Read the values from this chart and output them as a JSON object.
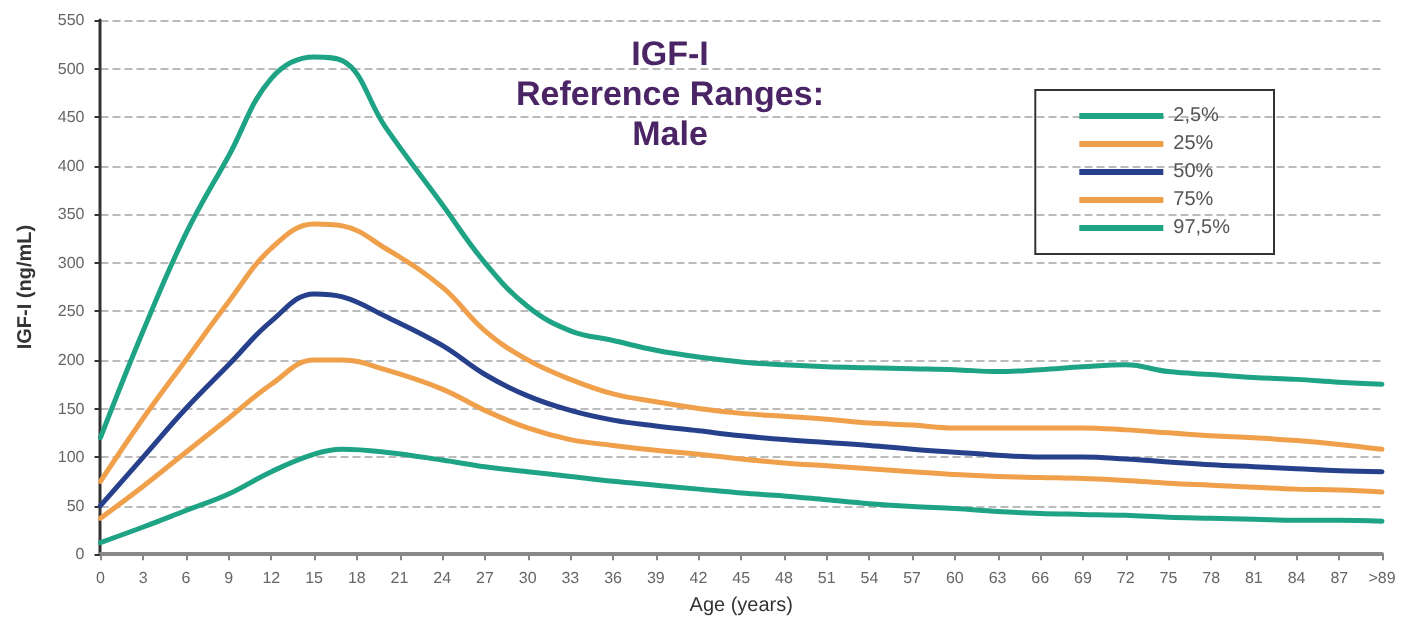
{
  "chart_data": {
    "type": "line",
    "title": "IGF-I\nReference Ranges:\nMale",
    "xlabel": "Age (years)",
    "ylabel": "IGF-I (ng/mL)",
    "x": [
      0,
      3,
      6,
      9,
      12,
      15,
      17,
      20,
      24,
      27,
      30,
      33,
      36,
      39,
      42,
      45,
      48,
      51,
      54,
      57,
      60,
      63,
      66,
      69,
      72,
      75,
      78,
      81,
      84,
      87,
      90
    ],
    "series": [
      {
        "name": "2,5%",
        "color": "#1fa385",
        "values": [
          12,
          28,
          45,
          62,
          85,
          103,
          108,
          105,
          97,
          90,
          85,
          80,
          75,
          71,
          67,
          63,
          60,
          56,
          52,
          49,
          47,
          44,
          42,
          41,
          40,
          38,
          37,
          36,
          35,
          35,
          34
        ]
      },
      {
        "name": "25%",
        "color": "#f0a04b",
        "values": [
          37,
          70,
          105,
          140,
          175,
          200,
          200,
          190,
          170,
          148,
          130,
          118,
          112,
          107,
          103,
          98,
          94,
          91,
          88,
          85,
          82,
          80,
          79,
          78,
          76,
          73,
          71,
          69,
          67,
          66,
          64
        ]
      },
      {
        "name": "50%",
        "color": "#27408b",
        "values": [
          50,
          100,
          150,
          195,
          240,
          268,
          265,
          245,
          215,
          185,
          163,
          148,
          138,
          132,
          127,
          122,
          118,
          115,
          112,
          108,
          105,
          102,
          100,
          100,
          98,
          95,
          92,
          90,
          88,
          86,
          85
        ]
      },
      {
        "name": "75%",
        "color": "#f0a04b",
        "values": [
          75,
          140,
          200,
          260,
          315,
          340,
          338,
          315,
          275,
          230,
          200,
          180,
          165,
          157,
          150,
          145,
          142,
          139,
          135,
          133,
          130,
          130,
          130,
          130,
          128,
          125,
          122,
          120,
          117,
          113,
          108
        ]
      },
      {
        "name": "97,5%",
        "color": "#1fa385",
        "values": [
          120,
          230,
          330,
          410,
          490,
          512,
          508,
          440,
          360,
          300,
          255,
          230,
          220,
          210,
          203,
          198,
          195,
          193,
          192,
          191,
          190,
          188,
          190,
          193,
          195,
          188,
          185,
          182,
          180,
          177,
          175
        ]
      }
    ],
    "xlim": [
      0,
      90
    ],
    "xticks": [
      0,
      3,
      6,
      9,
      12,
      15,
      18,
      21,
      24,
      27,
      30,
      33,
      36,
      39,
      42,
      45,
      48,
      51,
      54,
      57,
      60,
      63,
      66,
      69,
      72,
      75,
      78,
      81,
      84,
      87,
      {
        "value": 90,
        "label": ">89"
      }
    ],
    "ylim": [
      0,
      550
    ],
    "yticks": [
      0,
      50,
      100,
      150,
      200,
      250,
      300,
      350,
      400,
      450,
      500,
      550
    ],
    "grid": "y",
    "legend": "top right",
    "marker": "none",
    "line_style": "solid"
  }
}
